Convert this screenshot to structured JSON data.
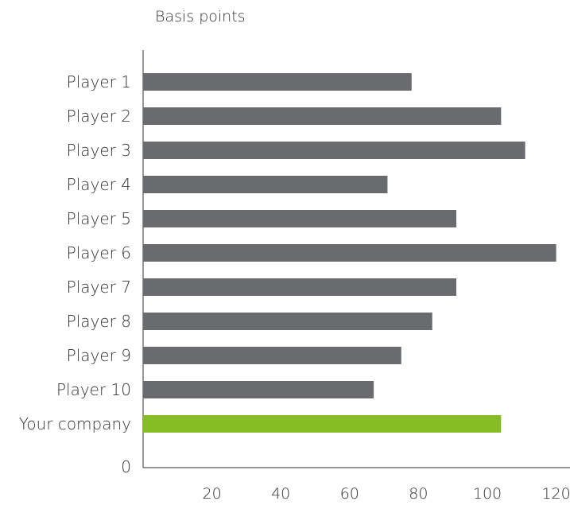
{
  "chart_data": {
    "type": "bar",
    "orientation": "horizontal",
    "unit_label": "Basis points",
    "categories": [
      "Player 1",
      "Player 2",
      "Player 3",
      "Player 4",
      "Player 5",
      "Player 6",
      "Player 7",
      "Player 8",
      "Player 9",
      "Player 10",
      "Your company"
    ],
    "values": [
      78,
      104,
      111,
      71,
      91,
      120,
      91,
      84,
      75,
      67,
      104
    ],
    "highlight_category": "Your company",
    "colors": {
      "bar": "#696b6e",
      "highlight": "#86bc25",
      "axis": "#555555",
      "text": "#333333"
    },
    "x_ticks": [
      "20",
      "40",
      "60",
      "80",
      "100",
      "120"
    ],
    "x_tick_values": [
      20,
      40,
      60,
      80,
      100,
      120
    ],
    "y_zero_label": "0",
    "xlim": [
      0,
      125
    ],
    "grid": false,
    "legend": "none"
  }
}
